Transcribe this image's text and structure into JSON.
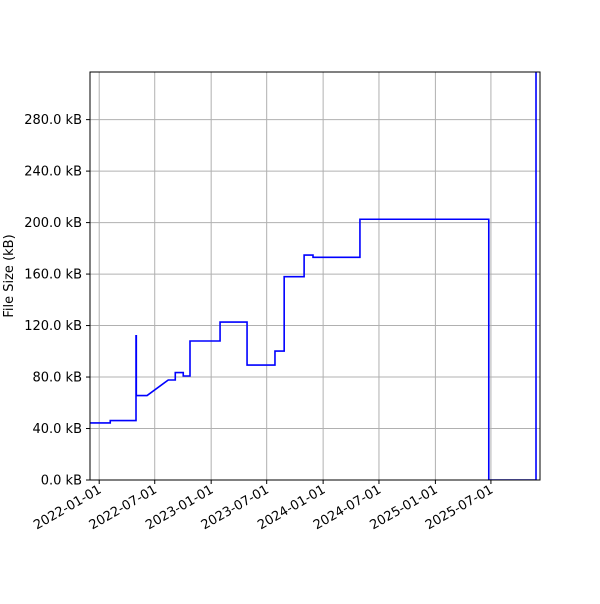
{
  "chart_data": {
    "type": "line",
    "title": "",
    "xlabel": "",
    "ylabel": "File Size (kB)",
    "grid": true,
    "xlim": [
      "2021-12-02",
      "2025-12-08"
    ],
    "ylim": [
      0,
      317
    ],
    "x_ticks": [
      "2022-01-01",
      "2022-07-01",
      "2023-01-01",
      "2023-07-01",
      "2024-01-01",
      "2024-07-01",
      "2025-01-01",
      "2025-07-01"
    ],
    "y_ticks": [
      0,
      40,
      80,
      120,
      160,
      200,
      240,
      280
    ],
    "y_tick_labels": [
      "0.0 kB",
      "40.0 kB",
      "80.0 kB",
      "120.0 kB",
      "160.0 kB",
      "200.0 kB",
      "240.0 kB",
      "280.0 kB"
    ],
    "line_color": "#0000ff",
    "series": [
      {
        "step": true,
        "points": [
          [
            "2021-12-02",
            44.3
          ],
          [
            "2022-02-06",
            46.2
          ],
          [
            "2022-05-01",
            112
          ],
          [
            "2022-05-02",
            65.6
          ],
          [
            "2022-06-06",
            65.6
          ],
          [
            "2022-08-14",
            77.7
          ],
          [
            "2022-09-06",
            83.5
          ],
          [
            "2022-10-02",
            80.8
          ],
          [
            "2022-10-24",
            108
          ],
          [
            "2023-01-30",
            122.7
          ],
          [
            "2023-04-28",
            89.3
          ],
          [
            "2023-07-28",
            100.2
          ],
          [
            "2023-08-27",
            158
          ],
          [
            "2023-10-31",
            174.8
          ],
          [
            "2023-11-29",
            173
          ],
          [
            "2024-04-30",
            202.6
          ],
          [
            "2025-06-24",
            0
          ],
          [
            "2025-11-25",
            330
          ]
        ]
      }
    ]
  }
}
